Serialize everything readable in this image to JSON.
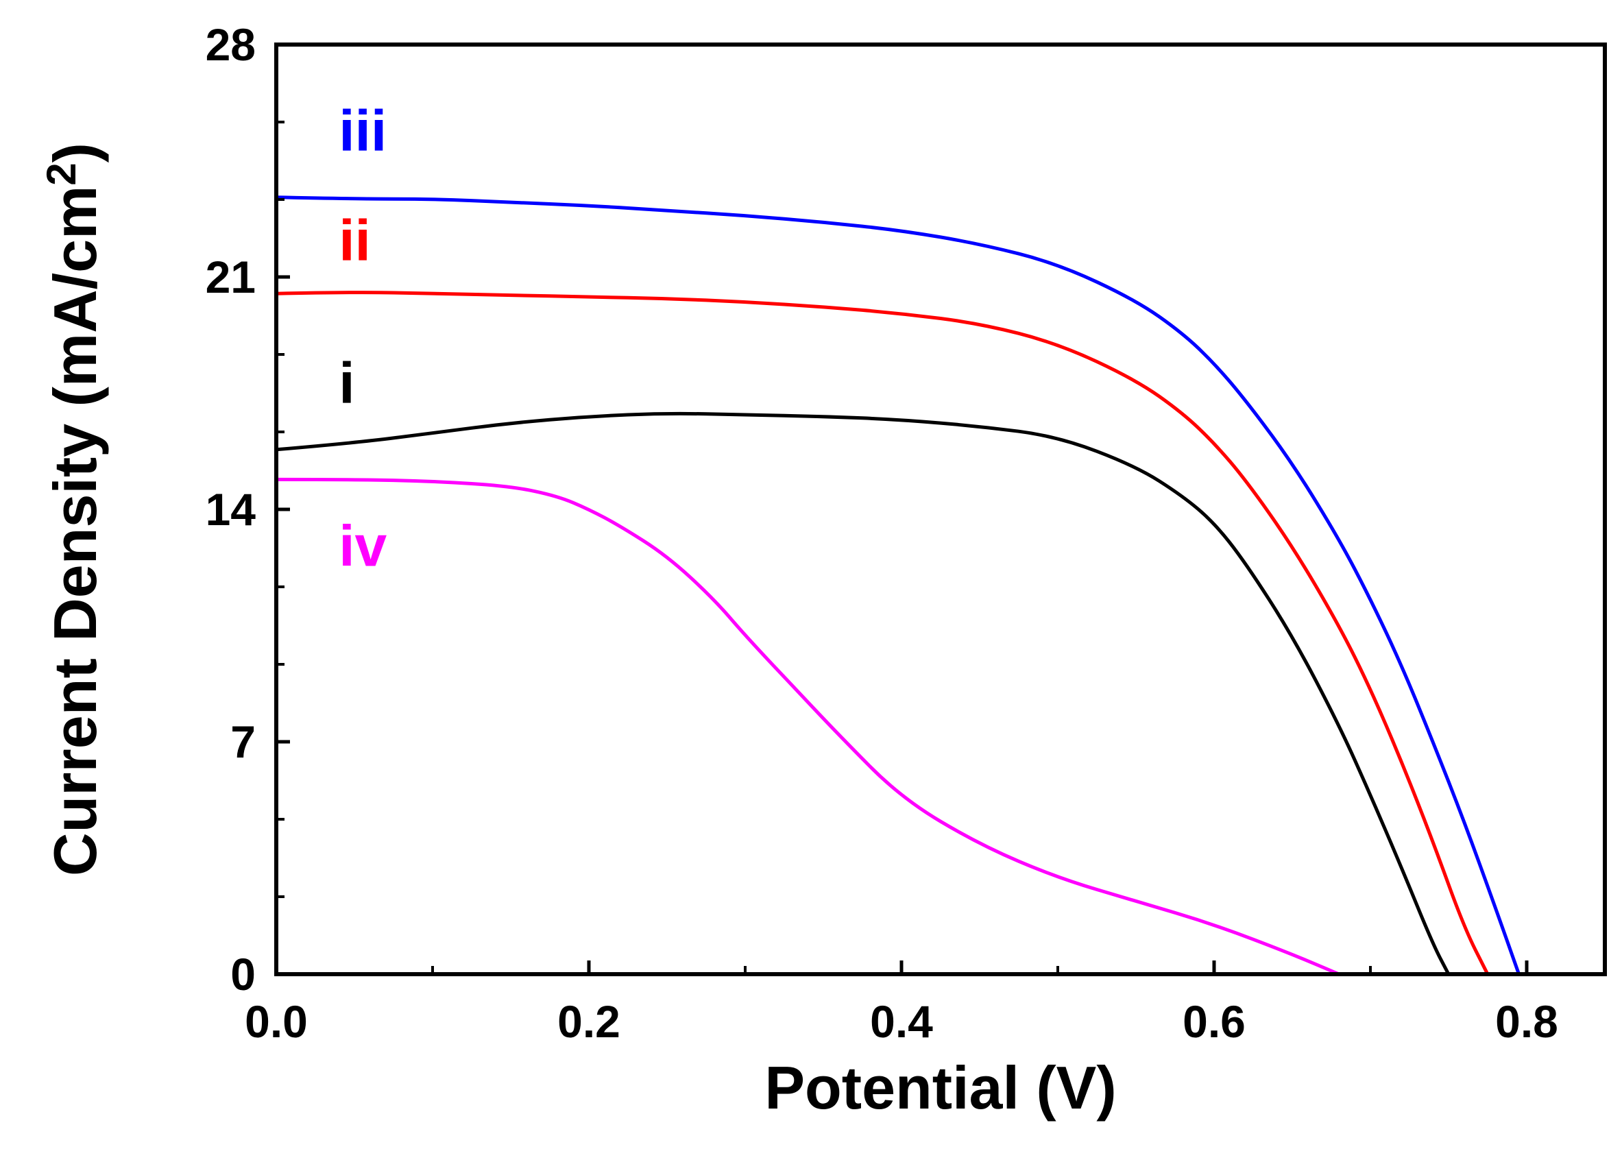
{
  "chart_data": {
    "type": "line",
    "title": "",
    "xlabel": "Potential (V)",
    "ylabel": "Current Density (mA/cm",
    "ylabel_sup": "2",
    "ylabel_close": ")",
    "xlim": [
      0.0,
      0.85
    ],
    "ylim": [
      0,
      28
    ],
    "xticks": [
      0.0,
      0.2,
      0.4,
      0.6,
      0.8
    ],
    "xtick_labels": [
      "0.0",
      "0.2",
      "0.4",
      "0.6",
      "0.8"
    ],
    "yticks": [
      0,
      7,
      14,
      21,
      28
    ],
    "ytick_labels": [
      "0",
      "7",
      "14",
      "21",
      "28"
    ],
    "grid": false,
    "series": [
      {
        "name": "i",
        "color": "#000000",
        "label_at": [
          0.04,
          17.2
        ],
        "x": [
          0.0,
          0.05,
          0.1,
          0.15,
          0.2,
          0.25,
          0.3,
          0.35,
          0.4,
          0.45,
          0.5,
          0.55,
          0.58,
          0.6,
          0.62,
          0.65,
          0.68,
          0.7,
          0.72,
          0.74,
          0.75
        ],
        "values": [
          15.8,
          16.0,
          16.3,
          16.6,
          16.8,
          16.9,
          16.85,
          16.8,
          16.7,
          16.5,
          16.2,
          15.3,
          14.4,
          13.6,
          12.4,
          10.2,
          7.5,
          5.4,
          3.2,
          0.9,
          0.0
        ]
      },
      {
        "name": "ii",
        "color": "#ff0000",
        "label_at": [
          0.04,
          21.5
        ],
        "x": [
          0.0,
          0.05,
          0.1,
          0.15,
          0.2,
          0.25,
          0.3,
          0.35,
          0.4,
          0.45,
          0.5,
          0.55,
          0.58,
          0.6,
          0.62,
          0.65,
          0.68,
          0.7,
          0.72,
          0.74,
          0.76,
          0.775
        ],
        "values": [
          20.5,
          20.55,
          20.5,
          20.45,
          20.4,
          20.35,
          20.25,
          20.1,
          19.9,
          19.6,
          19.0,
          17.9,
          16.9,
          16.0,
          14.9,
          12.9,
          10.5,
          8.6,
          6.4,
          4.0,
          1.4,
          0.0
        ]
      },
      {
        "name": "iii",
        "color": "#0000ff",
        "label_at": [
          0.04,
          24.8
        ],
        "x": [
          0.0,
          0.05,
          0.1,
          0.15,
          0.2,
          0.25,
          0.3,
          0.35,
          0.4,
          0.45,
          0.5,
          0.55,
          0.58,
          0.6,
          0.62,
          0.65,
          0.68,
          0.7,
          0.72,
          0.74,
          0.76,
          0.78,
          0.795
        ],
        "values": [
          23.4,
          23.35,
          23.35,
          23.25,
          23.15,
          23.0,
          22.85,
          22.65,
          22.4,
          22.0,
          21.4,
          20.3,
          19.3,
          18.4,
          17.3,
          15.4,
          13.1,
          11.3,
          9.3,
          7.0,
          4.6,
          2.0,
          0.0
        ]
      },
      {
        "name": "iv",
        "color": "#ff00ff",
        "label_at": [
          0.04,
          12.3
        ],
        "x": [
          0.0,
          0.05,
          0.1,
          0.15,
          0.18,
          0.2,
          0.22,
          0.25,
          0.28,
          0.3,
          0.33,
          0.36,
          0.4,
          0.45,
          0.5,
          0.55,
          0.6,
          0.65,
          0.68
        ],
        "values": [
          14.9,
          14.9,
          14.85,
          14.7,
          14.4,
          14.0,
          13.5,
          12.6,
          11.3,
          10.2,
          8.7,
          7.2,
          5.3,
          3.9,
          2.9,
          2.2,
          1.5,
          0.6,
          0.0
        ]
      }
    ]
  }
}
